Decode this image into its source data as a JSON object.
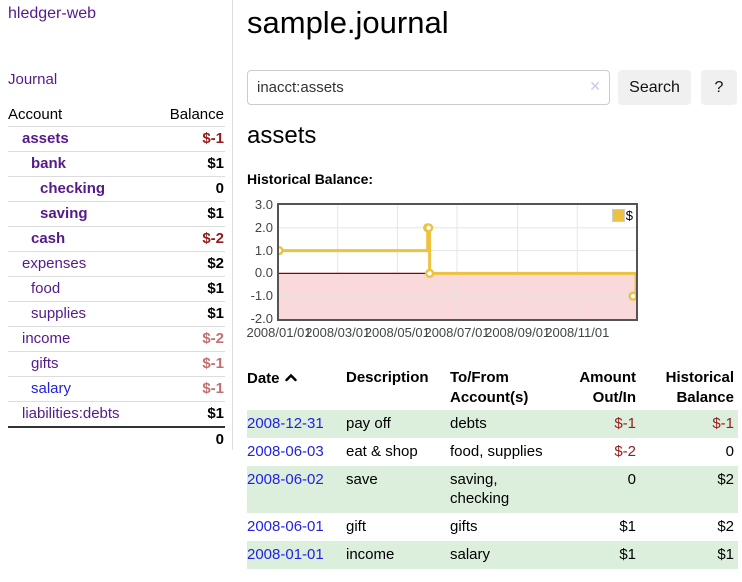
{
  "sidebar": {
    "app_title": "hledger-web",
    "journal_link": "Journal",
    "accounts_table": {
      "headers": [
        "Account",
        "Balance"
      ],
      "rows": [
        {
          "name": "assets",
          "balance": "$-1",
          "depth": 1,
          "bold": true,
          "link": "purple"
        },
        {
          "name": "bank",
          "balance": "$1",
          "depth": 2,
          "bold": true,
          "link": "purple"
        },
        {
          "name": "checking",
          "balance": "0",
          "depth": 3,
          "bold": true,
          "link": "purple"
        },
        {
          "name": "saving",
          "balance": "$1",
          "depth": 3,
          "bold": true,
          "link": "purple"
        },
        {
          "name": "cash",
          "balance": "$-2",
          "depth": 2,
          "bold": true,
          "link": "purple"
        },
        {
          "name": "expenses",
          "balance": "$2",
          "depth": 1,
          "bold": false,
          "link": "purple"
        },
        {
          "name": "food",
          "balance": "$1",
          "depth": 2,
          "bold": false,
          "link": "purple"
        },
        {
          "name": "supplies",
          "balance": "$1",
          "depth": 2,
          "bold": false,
          "link": "purple"
        },
        {
          "name": "income",
          "balance": "$-2",
          "depth": 1,
          "bold": false,
          "link": "purple"
        },
        {
          "name": "gifts",
          "balance": "$-1",
          "depth": 2,
          "bold": false,
          "link": "purple"
        },
        {
          "name": "salary",
          "balance": "$-1",
          "depth": 2,
          "bold": false,
          "link": "blue"
        },
        {
          "name": "liabilities:debts",
          "balance": "$1",
          "depth": 1,
          "bold": false,
          "link": "purple"
        }
      ],
      "total": "0"
    }
  },
  "header": {
    "title": "sample.journal"
  },
  "search": {
    "query": "inacct:assets",
    "clear_icon": "✕",
    "search_button": "Search",
    "help_button": "?"
  },
  "account_page": {
    "heading": "assets",
    "chart_label": "Historical Balance:"
  },
  "chart_data": {
    "type": "line",
    "title": "Historical Balance",
    "style": "step-after",
    "series": [
      {
        "name": "$",
        "color": "#EDC240",
        "points": [
          [
            "2008-01-01",
            1
          ],
          [
            "2008-06-01",
            2
          ],
          [
            "2008-06-02",
            2
          ],
          [
            "2008-06-03",
            0
          ],
          [
            "2008-12-31",
            -1
          ]
        ]
      }
    ],
    "ylim": [
      -2,
      3
    ],
    "yticks": [
      3.0,
      2.0,
      1.0,
      0.0,
      -1.0,
      -2.0
    ],
    "xticks": [
      "2008/01/01",
      "2008/03/01",
      "2008/05/01",
      "2008/07/01",
      "2008/09/01",
      "2008/11/01"
    ],
    "legend": {
      "label": "$",
      "position": "top-right"
    },
    "colors": {
      "line": "#EDC240",
      "marker_fill": "#ffffff",
      "negative_region": "#f9d9d9",
      "zero_line": "#8b0000",
      "grid": "#e5e5e5",
      "plot_border": "#545454"
    }
  },
  "register_table": {
    "headers": {
      "date": "Date",
      "description": "Description",
      "tofrom_line1": "To/From",
      "tofrom_line2": "Account(s)",
      "amount_line1": "Amount",
      "amount_line2": "Out/In",
      "hist_line1": "Historical",
      "hist_line2": "Balance"
    },
    "sort_indicator": "caret-up",
    "rows": [
      {
        "date": "2008-12-31",
        "description": "pay off",
        "accounts": "debts",
        "amount": "$-1",
        "balance": "$-1"
      },
      {
        "date": "2008-06-03",
        "description": "eat & shop",
        "accounts": "food, supplies",
        "amount": "$-2",
        "balance": "0"
      },
      {
        "date": "2008-06-02",
        "description": "save",
        "accounts": "saving, checking",
        "amount": "0",
        "balance": "$2"
      },
      {
        "date": "2008-06-01",
        "description": "gift",
        "accounts": "gifts",
        "amount": "$1",
        "balance": "$2"
      },
      {
        "date": "2008-01-01",
        "description": "income",
        "accounts": "salary",
        "amount": "$1",
        "balance": "$1"
      }
    ]
  },
  "colors": {
    "link_purple": "#551A8B",
    "link_blue": "#2222e0",
    "negative_strong": "#961a1a",
    "negative_light": "#c17070",
    "row_stripe_green": "#dceedc",
    "button_bg": "#f0f0f0"
  }
}
